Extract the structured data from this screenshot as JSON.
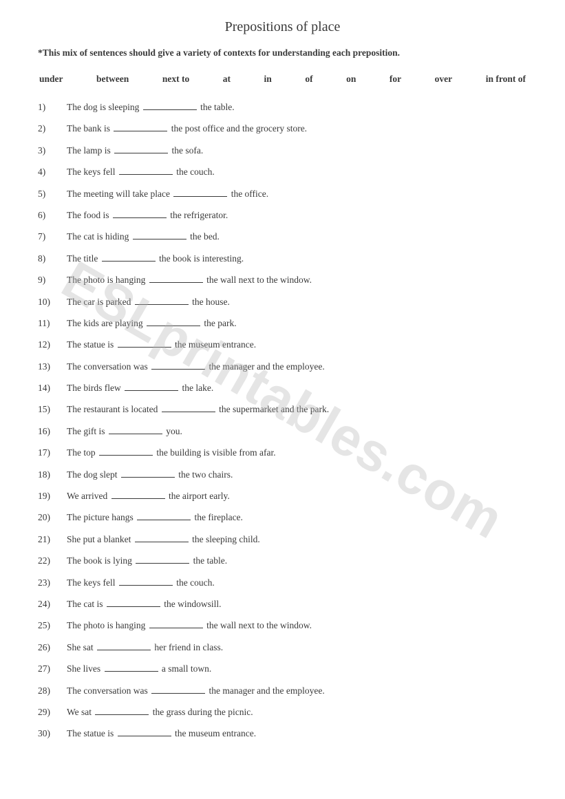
{
  "title": "Prepositions of place",
  "instruction": "*This mix of sentences should give a variety of contexts for understanding each preposition.",
  "wordBank": [
    "under",
    "between",
    "next to",
    "at",
    "in",
    "of",
    "on",
    "for",
    "over",
    "in front of"
  ],
  "watermark": "ESLprintables.com",
  "questions": [
    {
      "num": "1)",
      "before": "The dog is sleeping ",
      "after": " the table."
    },
    {
      "num": "2)",
      "before": "The bank is ",
      "after": " the post office and the grocery store."
    },
    {
      "num": "3)",
      "before": "The lamp is ",
      "after": " the sofa."
    },
    {
      "num": "4)",
      "before": "The keys fell ",
      "after": " the couch."
    },
    {
      "num": "5)",
      "before": "The meeting will take place ",
      "after": " the office."
    },
    {
      "num": "6)",
      "before": "The food is ",
      "after": " the refrigerator."
    },
    {
      "num": "7)",
      "before": "The cat is hiding ",
      "after": " the bed."
    },
    {
      "num": "8)",
      "before": "The title ",
      "after": " the book is interesting."
    },
    {
      "num": "9)",
      "before": "The photo is hanging ",
      "after": " the wall next to the window."
    },
    {
      "num": "10)",
      "before": "The car is parked ",
      "after": " the house."
    },
    {
      "num": "11)",
      "before": "The kids are playing ",
      "after": " the park."
    },
    {
      "num": "12)",
      "before": "The statue is ",
      "after": " the museum entrance."
    },
    {
      "num": "13)",
      "before": "The conversation was ",
      "after": " the manager and the employee."
    },
    {
      "num": "14)",
      "before": "The birds flew ",
      "after": " the lake."
    },
    {
      "num": "15)",
      "before": "The restaurant is located ",
      "after": " the supermarket and the park."
    },
    {
      "num": "16)",
      "before": "The gift is ",
      "after": " you."
    },
    {
      "num": "17)",
      "before": "The top ",
      "after": " the building is visible from afar."
    },
    {
      "num": "18)",
      "before": "The dog slept ",
      "after": " the two chairs."
    },
    {
      "num": "19)",
      "before": "We arrived ",
      "after": " the airport early."
    },
    {
      "num": "20)",
      "before": "The picture hangs ",
      "after": " the fireplace."
    },
    {
      "num": "21)",
      "before": "She put a blanket ",
      "after": " the sleeping child."
    },
    {
      "num": "22)",
      "before": "The book is lying ",
      "after": " the table."
    },
    {
      "num": "23)",
      "before": "The keys fell ",
      "after": " the couch."
    },
    {
      "num": "24)",
      "before": "The cat is ",
      "after": " the windowsill."
    },
    {
      "num": "25)",
      "before": "The photo is hanging ",
      "after": " the wall next to the window."
    },
    {
      "num": "26)",
      "before": "She sat ",
      "after": " her friend in class."
    },
    {
      "num": "27)",
      "before": "She lives ",
      "after": " a small town."
    },
    {
      "num": "28)",
      "before": "The conversation was ",
      "after": " the manager and the employee."
    },
    {
      "num": "29)",
      "before": "We sat ",
      "after": " the grass during the picnic."
    },
    {
      "num": "30)",
      "before": "The statue is ",
      "after": " the museum entrance."
    }
  ]
}
